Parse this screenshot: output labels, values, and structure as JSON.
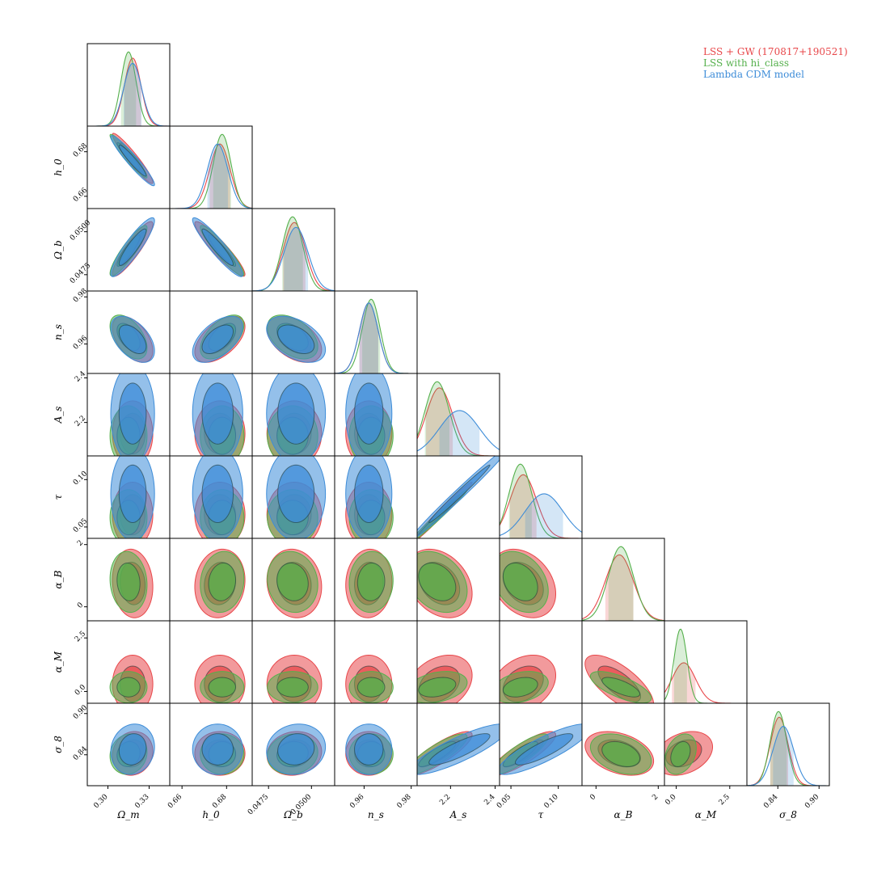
{
  "chart_data": {
    "type": "corner",
    "parameters": [
      {
        "key": "om",
        "label": "Ω_m",
        "range": [
          0.285,
          0.345
        ],
        "ticks": [
          {
            "v": 0.3,
            "label": "0.30"
          },
          {
            "v": 0.33,
            "label": "0.33"
          }
        ]
      },
      {
        "key": "h0",
        "label": "h_0",
        "range": [
          0.6545,
          0.6915
        ],
        "ticks": [
          {
            "v": 0.66,
            "label": "0.66"
          },
          {
            "v": 0.68,
            "label": "0.68"
          }
        ]
      },
      {
        "key": "ob",
        "label": "Ω_b",
        "range": [
          0.04655,
          0.05135
        ],
        "ticks": [
          {
            "v": 0.0475,
            "label": "0.0475"
          },
          {
            "v": 0.05,
            "label": "0.0500"
          }
        ]
      },
      {
        "key": "ns",
        "label": "n_s",
        "range": [
          0.9475,
          0.9825
        ],
        "ticks": [
          {
            "v": 0.96,
            "label": "0.96"
          },
          {
            "v": 0.98,
            "label": "0.98"
          }
        ]
      },
      {
        "key": "As",
        "label": "A_s",
        "range": [
          2.05,
          2.42
        ],
        "ticks": [
          {
            "v": 2.2,
            "label": "2.2"
          },
          {
            "v": 2.4,
            "label": "2.4"
          }
        ]
      },
      {
        "key": "tau",
        "label": "τ",
        "range": [
          0.038,
          0.125
        ],
        "ticks": [
          {
            "v": 0.05,
            "label": "0.05"
          },
          {
            "v": 0.1,
            "label": "0.10"
          }
        ]
      },
      {
        "key": "aB",
        "label": "α_B",
        "range": [
          -0.45,
          2.2
        ],
        "ticks": [
          {
            "v": 0,
            "label": "0"
          },
          {
            "v": 2,
            "label": "2"
          }
        ]
      },
      {
        "key": "aM",
        "label": "α_M",
        "range": [
          -0.55,
          3.3
        ],
        "ticks": [
          {
            "v": 0.0,
            "label": "0.0"
          },
          {
            "v": 2.5,
            "label": "2.5"
          }
        ]
      },
      {
        "key": "s8",
        "label": "σ_8",
        "range": [
          0.795,
          0.915
        ],
        "ticks": [
          {
            "v": 0.84,
            "label": "0.84"
          },
          {
            "v": 0.9,
            "label": "0.90"
          }
        ]
      }
    ],
    "series": [
      {
        "name": "LSS + GW (170817+190521)",
        "color": "#e8474a",
        "has": [
          "om",
          "h0",
          "ob",
          "ns",
          "As",
          "tau",
          "aB",
          "aM",
          "s8"
        ],
        "mean": {
          "om": 0.318,
          "h0": 0.677,
          "ob": 0.049,
          "ns": 0.962,
          "As": 2.15,
          "tau": 0.063,
          "aB": 0.75,
          "aM": 0.35,
          "s8": 0.842
        },
        "sd": {
          "om": 0.006,
          "h0": 0.0046,
          "ob": 0.00065,
          "ns": 0.004,
          "As": 0.06,
          "tau": 0.014,
          "aB": 0.45,
          "aM": 0.55,
          "s8": 0.013
        }
      },
      {
        "name": "LSS with hi_class",
        "color": "#55b04c",
        "has": [
          "om",
          "h0",
          "ob",
          "ns",
          "As",
          "tau",
          "aB",
          "aM",
          "s8"
        ],
        "mean": {
          "om": 0.315,
          "h0": 0.678,
          "ob": 0.0489,
          "ns": 0.963,
          "As": 2.14,
          "tau": 0.06,
          "aB": 0.8,
          "aM": 0.2,
          "s8": 0.841
        },
        "sd": {
          "om": 0.0055,
          "h0": 0.004,
          "ob": 0.0006,
          "ns": 0.0038,
          "As": 0.055,
          "tau": 0.012,
          "aB": 0.4,
          "aM": 0.3,
          "s8": 0.012
        }
      },
      {
        "name": "Lambda CDM model",
        "color": "#3d8cd8",
        "has": [
          "om",
          "h0",
          "ob",
          "ns",
          "As",
          "tau",
          "s8"
        ],
        "mean": {
          "om": 0.318,
          "h0": 0.676,
          "ob": 0.0491,
          "ns": 0.962,
          "As": 2.24,
          "tau": 0.085,
          "s8": 0.848
        },
        "sd": {
          "om": 0.0065,
          "h0": 0.0046,
          "ob": 0.0007,
          "ns": 0.004,
          "As": 0.09,
          "tau": 0.02,
          "s8": 0.015
        }
      }
    ],
    "correlations": {
      "om|h0": -0.95,
      "om|ob": 0.9,
      "om|ns": -0.5,
      "om|As": 0.0,
      "om|tau": 0.0,
      "om|aB": -0.1,
      "om|aM": 0.0,
      "om|s8": 0.1,
      "h0|ob": -0.93,
      "h0|ns": 0.55,
      "h0|As": 0.0,
      "h0|tau": 0.0,
      "h0|aB": 0.1,
      "h0|aM": 0.0,
      "h0|s8": 0.0,
      "ob|ns": -0.45,
      "ob|As": 0.0,
      "ob|tau": 0.0,
      "ob|aB": -0.1,
      "ob|aM": 0.0,
      "ob|s8": 0.1,
      "ns|As": 0.0,
      "ns|tau": 0.0,
      "ns|aB": 0.05,
      "ns|aM": 0.0,
      "ns|s8": 0.0,
      "As|tau": 0.99,
      "As|aB": -0.3,
      "As|aM": 0.3,
      "As|s8": 0.85,
      "tau|aB": -0.3,
      "tau|aM": 0.3,
      "tau|s8": 0.85,
      "aB|aM": -0.7,
      "aB|s8": -0.35,
      "aM|s8": 0.3
    }
  }
}
